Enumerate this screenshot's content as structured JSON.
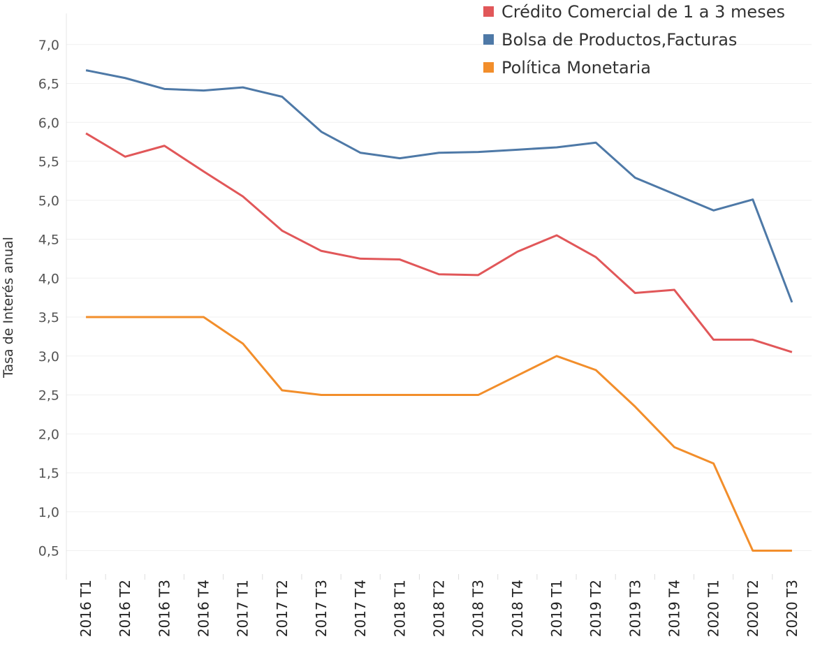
{
  "chart_data": {
    "type": "line",
    "y_label": "Tasa de Interés anual",
    "categories": [
      "2016 T1",
      "2016 T2",
      "2016 T3",
      "2016 T4",
      "2017 T1",
      "2017 T2",
      "2017 T3",
      "2017 T4",
      "2018 T1",
      "2018 T2",
      "2018 T3",
      "2018 T4",
      "2019 T1",
      "2019 T2",
      "2019 T3",
      "2019 T4",
      "2020 T1",
      "2020 T2",
      "2020 T3"
    ],
    "series": [
      {
        "name": "Crédito Comercial de 1 a 3 meses",
        "color": "#e15759",
        "values": [
          5.86,
          5.56,
          5.7,
          5.37,
          5.05,
          4.61,
          4.35,
          4.25,
          4.24,
          4.05,
          4.04,
          4.34,
          4.55,
          4.27,
          3.81,
          3.85,
          3.21,
          3.21,
          3.05
        ]
      },
      {
        "name": "Bolsa de Productos,Facturas",
        "color": "#4e79a7",
        "values": [
          6.67,
          6.57,
          6.43,
          6.41,
          6.45,
          6.33,
          5.88,
          5.61,
          5.54,
          5.61,
          5.62,
          5.65,
          5.68,
          5.74,
          5.29,
          5.08,
          4.87,
          5.01,
          3.69
        ]
      },
      {
        "name": "Política Monetaria",
        "color": "#f28e2b",
        "values": [
          3.5,
          3.5,
          3.5,
          3.5,
          3.16,
          2.56,
          2.5,
          2.5,
          2.5,
          2.5,
          2.5,
          2.75,
          3.0,
          2.82,
          2.35,
          1.83,
          1.62,
          0.5,
          0.5
        ]
      }
    ],
    "ylim": [
      0.2,
      7.4
    ],
    "yticks": [
      {
        "value": 0.5,
        "label": "0,5"
      },
      {
        "value": 1,
        "label": "1,0"
      },
      {
        "value": 1.5,
        "label": "1,5"
      },
      {
        "value": 2,
        "label": "2,0"
      },
      {
        "value": 2.5,
        "label": "2,5"
      },
      {
        "value": 3,
        "label": "3,0"
      },
      {
        "value": 3.5,
        "label": "3,5"
      },
      {
        "value": 4,
        "label": "4,0"
      },
      {
        "value": 4.5,
        "label": "4,5"
      },
      {
        "value": 5,
        "label": "5,0"
      },
      {
        "value": 5.5,
        "label": "5,5"
      },
      {
        "value": 6,
        "label": "6,0"
      },
      {
        "value": 6.5,
        "label": "6,5"
      },
      {
        "value": 7,
        "label": "7,0"
      }
    ],
    "grid": true
  }
}
